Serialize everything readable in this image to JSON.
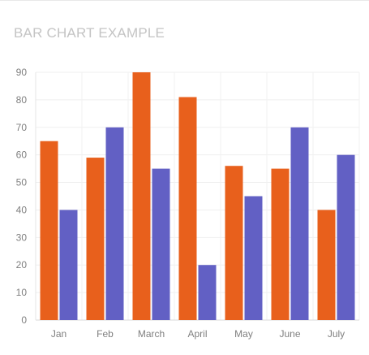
{
  "chart_data": {
    "type": "bar",
    "title": "BAR CHART EXAMPLE",
    "xlabel": "",
    "ylabel": "",
    "categories": [
      "Jan",
      "Feb",
      "March",
      "April",
      "May",
      "June",
      "July"
    ],
    "series": [
      {
        "values": [
          65,
          59,
          90,
          81,
          56,
          55,
          40
        ],
        "color": "#e8601c"
      },
      {
        "values": [
          40,
          70,
          55,
          20,
          45,
          70,
          60
        ],
        "color": "#6260c4"
      }
    ],
    "ylim": [
      0,
      90
    ],
    "yticks": [
      "0",
      "10",
      "20",
      "30",
      "40",
      "50",
      "60",
      "70",
      "80",
      "90"
    ],
    "grid": true,
    "legend": "none"
  }
}
